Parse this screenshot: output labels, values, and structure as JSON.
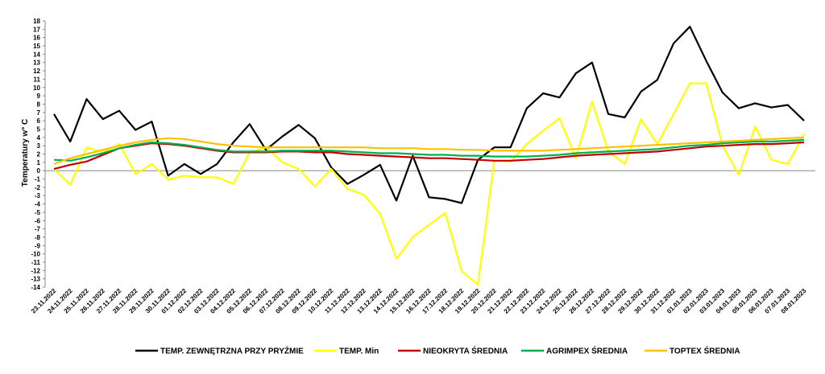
{
  "chart_data": {
    "type": "line",
    "xlabel": "",
    "ylabel": "Temperatury  w° C",
    "ylim": [
      -14,
      18
    ],
    "y_ticks": [
      18,
      17,
      16,
      15,
      14,
      13,
      12,
      11,
      10,
      9,
      8,
      7,
      6,
      5,
      4,
      3,
      2,
      1,
      0,
      -1,
      -2,
      -3,
      -4,
      -5,
      -6,
      -7,
      -8,
      -9,
      -10,
      -11,
      -12,
      -13,
      -14
    ],
    "grid": false,
    "legend_position": "bottom",
    "categories": [
      "23.11.2022",
      "24.11.2022",
      "25.11.2022",
      "26.11.2022",
      "27.11.2022",
      "28.11.2022",
      "29.11.2022",
      "30.11.2022",
      "01.12.2022",
      "02.12.2022",
      "03.12.2022",
      "04.12.2022",
      "05.12.2022",
      "06.12.2022",
      "07.12.2022",
      "08.12.2022",
      "09.12.2022",
      "10.12.2022",
      "11.12.2022",
      "12.12.2022",
      "13.12.2022",
      "14.12.2022",
      "15.12.2022",
      "16.12.2022",
      "17.12.2022",
      "18.12.2022",
      "19.12.2022",
      "20.12.2022",
      "21.12.2022",
      "22.12.2022",
      "23.12.2022",
      "24.12.2022",
      "25.12.2022",
      "26.12.2022",
      "27.12.2022",
      "28.12.2022",
      "29.12.2022",
      "30.12.2022",
      "31.12.2022",
      "01.01.2023",
      "02.01.2023",
      "03.01.2023",
      "04.01.2023",
      "05.01.2023",
      "06.01.2023",
      "07.01.2023",
      "08.01.2023"
    ],
    "series": [
      {
        "name": "TEMP. ZEWNĘTRZNA PRZY PRYŹMIE",
        "color": "#000000",
        "values": [
          6.8,
          3.5,
          8.6,
          6.2,
          7.2,
          4.9,
          5.9,
          -0.6,
          0.8,
          -0.4,
          0.8,
          3.4,
          5.6,
          2.5,
          4.1,
          5.5,
          3.9,
          0.4,
          -1.6,
          -0.5,
          0.7,
          -3.6,
          1.8,
          -3.2,
          -3.4,
          -3.9,
          1.3,
          2.8,
          2.8,
          7.5,
          9.3,
          8.8,
          11.7,
          13.0,
          6.8,
          6.4,
          9.5,
          10.9,
          15.3,
          17.3,
          13.2,
          9.4,
          7.5,
          8.1,
          7.6,
          7.9,
          6.0
        ]
      },
      {
        "name": "TEMP. Min",
        "color": "#ffff00",
        "values": [
          0.2,
          -1.7,
          2.8,
          2.2,
          3.2,
          -0.4,
          0.8,
          -1.1,
          -0.6,
          -0.8,
          -0.8,
          -1.6,
          2.2,
          2.8,
          1.0,
          0.2,
          -1.9,
          0.2,
          -2.2,
          -2.9,
          -5.2,
          -10.6,
          -8.0,
          -6.5,
          -5.1,
          -12.1,
          -13.7,
          1.2,
          1.1,
          3.2,
          4.8,
          6.3,
          1.5,
          8.3,
          2.3,
          0.8,
          6.2,
          3.2,
          6.8,
          10.5,
          10.5,
          3.0,
          -0.5,
          5.3,
          1.3,
          0.8,
          4.4
        ]
      },
      {
        "name": "NIEOKRYTA ŚREDNIA",
        "color": "#c00000",
        "values": [
          0.2,
          0.7,
          1.1,
          1.9,
          2.7,
          3.0,
          3.3,
          3.2,
          3.0,
          2.7,
          2.4,
          2.2,
          2.2,
          2.2,
          2.3,
          2.3,
          2.2,
          2.2,
          2.0,
          1.9,
          1.8,
          1.7,
          1.6,
          1.5,
          1.5,
          1.4,
          1.3,
          1.2,
          1.2,
          1.3,
          1.4,
          1.6,
          1.8,
          1.9,
          2.0,
          2.1,
          2.2,
          2.3,
          2.5,
          2.7,
          2.9,
          3.0,
          3.1,
          3.2,
          3.2,
          3.3,
          3.4
        ]
      },
      {
        "name": "AGRIMPEX ŚREDNIA",
        "color": "#00b050",
        "values": [
          1.3,
          1.2,
          1.6,
          2.1,
          2.7,
          3.1,
          3.4,
          3.3,
          3.1,
          2.8,
          2.5,
          2.3,
          2.3,
          2.3,
          2.4,
          2.4,
          2.4,
          2.4,
          2.3,
          2.2,
          2.1,
          2.1,
          2.0,
          1.9,
          1.9,
          1.8,
          1.8,
          1.7,
          1.7,
          1.7,
          1.8,
          1.9,
          2.1,
          2.2,
          2.3,
          2.4,
          2.5,
          2.6,
          2.8,
          3.0,
          3.1,
          3.3,
          3.4,
          3.5,
          3.5,
          3.6,
          3.7
        ]
      },
      {
        "name": "TOPTEX ŚREDNIA",
        "color": "#ffc000",
        "values": [
          0.8,
          1.5,
          2.0,
          2.5,
          3.0,
          3.4,
          3.7,
          3.9,
          3.8,
          3.5,
          3.2,
          3.0,
          2.9,
          2.8,
          2.8,
          2.8,
          2.8,
          2.8,
          2.8,
          2.8,
          2.7,
          2.7,
          2.7,
          2.6,
          2.6,
          2.5,
          2.5,
          2.4,
          2.4,
          2.4,
          2.4,
          2.5,
          2.6,
          2.7,
          2.8,
          2.9,
          3.0,
          3.1,
          3.2,
          3.3,
          3.4,
          3.5,
          3.6,
          3.7,
          3.8,
          3.9,
          4.0
        ]
      }
    ]
  }
}
